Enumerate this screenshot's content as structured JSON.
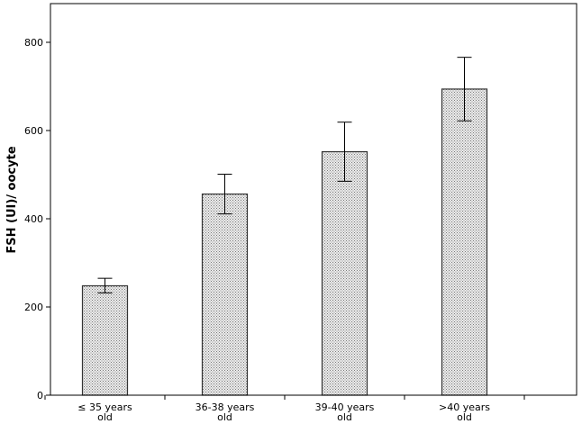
{
  "chart_data": {
    "type": "bar",
    "title": "",
    "xlabel": "",
    "ylabel": "FSH (UI)/ oocyte",
    "categories": [
      [
        "≤ 35 years",
        "old"
      ],
      [
        "36-38 years",
        "old"
      ],
      [
        "39-40 years",
        "old"
      ],
      [
        ">40 years",
        "old"
      ]
    ],
    "values": [
      248,
      456,
      552,
      694
    ],
    "error_low": [
      232,
      411,
      485,
      622
    ],
    "error_high": [
      265,
      501,
      619,
      766
    ],
    "ylim": [
      0,
      840
    ],
    "yticks": [
      0,
      200,
      400,
      600,
      800
    ],
    "ytick_labels": [
      "0",
      "200",
      "400",
      "600",
      "800"
    ],
    "grid": false,
    "legend": "none",
    "colors": {
      "bar_fill": "#ececec",
      "bar_pattern_dot": "#7a7a7a",
      "bar_stroke": "#333333",
      "axis": "#000000",
      "error_bar": "#000000"
    }
  }
}
